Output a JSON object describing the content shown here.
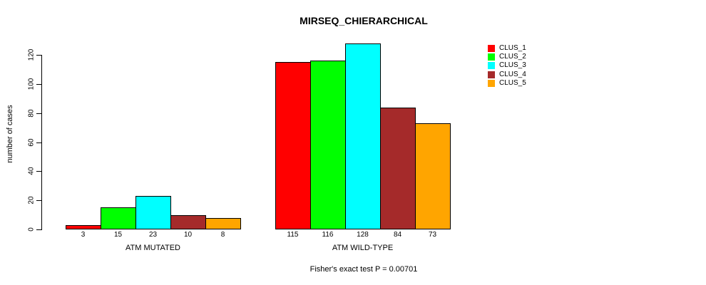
{
  "chart_data": {
    "type": "bar",
    "title": "MIRSEQ_CHIERARCHICAL",
    "ylabel": "number of cases",
    "xlabel": "",
    "annotation": "Fisher's exact test P = 0.00701",
    "categories": [
      "ATM MUTATED",
      "ATM WILD-TYPE"
    ],
    "series": [
      {
        "name": "CLUS_1",
        "color": "#FF0000",
        "values": [
          3,
          115
        ]
      },
      {
        "name": "CLUS_2",
        "color": "#00FF00",
        "values": [
          15,
          116
        ]
      },
      {
        "name": "CLUS_3",
        "color": "#00FFFF",
        "values": [
          23,
          128
        ]
      },
      {
        "name": "CLUS_4",
        "color": "#A52A2A",
        "values": [
          10,
          84
        ]
      },
      {
        "name": "CLUS_5",
        "color": "#FFA500",
        "values": [
          8,
          73
        ]
      }
    ],
    "yticks": [
      0,
      20,
      40,
      60,
      80,
      100,
      120
    ],
    "ylim": [
      0,
      128
    ],
    "bar_value_labels": true,
    "grid": false,
    "legend": {
      "position": "right",
      "entries": [
        "CLUS_1",
        "CLUS_2",
        "CLUS_3",
        "CLUS_4",
        "CLUS_5"
      ]
    },
    "axis_color": "#000000",
    "background": "#FFFFFF"
  }
}
